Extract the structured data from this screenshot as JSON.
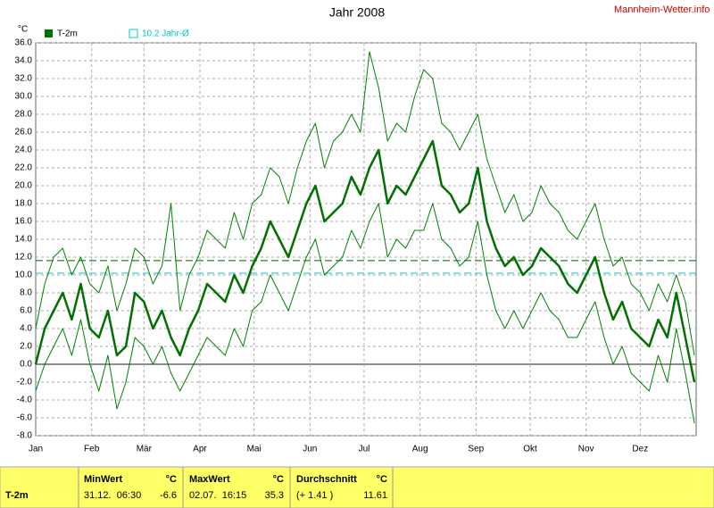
{
  "chart_data": {
    "type": "line",
    "title": "Jahr 2008",
    "y_unit": "°C",
    "source": "Mannheim-Wetter.info",
    "xlim": [
      1,
      367
    ],
    "xticks": [
      {
        "value": 1,
        "label": "Jan"
      },
      {
        "value": 32,
        "label": "Feb"
      },
      {
        "value": 61,
        "label": "Mär"
      },
      {
        "value": 92,
        "label": "Apr"
      },
      {
        "value": 122,
        "label": "Mai"
      },
      {
        "value": 153,
        "label": "Jun"
      },
      {
        "value": 183,
        "label": "Jul"
      },
      {
        "value": 214,
        "label": "Aug"
      },
      {
        "value": 245,
        "label": "Sep"
      },
      {
        "value": 275,
        "label": "Okt"
      },
      {
        "value": 306,
        "label": "Nov"
      },
      {
        "value": 336,
        "label": "Dez"
      }
    ],
    "ylim": [
      -8,
      36
    ],
    "yticks": [
      {
        "value": -8,
        "label": "-8.0"
      },
      {
        "value": -6,
        "label": "-6.0"
      },
      {
        "value": -4,
        "label": "-4.0"
      },
      {
        "value": -2,
        "label": "-2.0"
      },
      {
        "value": 0,
        "label": "0.0"
      },
      {
        "value": 2,
        "label": "2.0"
      },
      {
        "value": 4,
        "label": "4.0"
      },
      {
        "value": 6,
        "label": "6.0"
      },
      {
        "value": 8,
        "label": "8.0"
      },
      {
        "value": 10,
        "label": "10.0"
      },
      {
        "value": 12,
        "label": "12.0"
      },
      {
        "value": 14,
        "label": "14.0"
      },
      {
        "value": 16,
        "label": "16.0"
      },
      {
        "value": 18,
        "label": "18.0"
      },
      {
        "value": 20,
        "label": "20.0"
      },
      {
        "value": 22,
        "label": "22.0"
      },
      {
        "value": 24,
        "label": "24.0"
      },
      {
        "value": 26,
        "label": "26.0"
      },
      {
        "value": 28,
        "label": "28.0"
      },
      {
        "value": 30,
        "label": "30.0"
      },
      {
        "value": 32,
        "label": "32.0"
      },
      {
        "value": 34,
        "label": "34.0"
      },
      {
        "value": 36,
        "label": "36.0"
      }
    ],
    "grid": true,
    "x": [
      1,
      6,
      11,
      16,
      21,
      26,
      31,
      36,
      41,
      46,
      51,
      56,
      61,
      66,
      71,
      76,
      81,
      86,
      91,
      96,
      101,
      106,
      111,
      116,
      121,
      126,
      131,
      136,
      141,
      146,
      151,
      156,
      161,
      166,
      171,
      176,
      181,
      186,
      191,
      196,
      201,
      206,
      211,
      216,
      221,
      226,
      231,
      236,
      241,
      246,
      251,
      256,
      261,
      266,
      271,
      276,
      281,
      286,
      291,
      296,
      301,
      306,
      311,
      316,
      321,
      326,
      331,
      336,
      341,
      346,
      351,
      356,
      361,
      366
    ],
    "series": [
      {
        "name": "T-2m",
        "color": "#007000",
        "width": 2.5,
        "values": [
          0,
          4,
          6,
          8,
          5,
          9,
          4,
          3,
          6,
          1,
          2,
          8,
          7,
          4,
          6,
          3,
          1,
          4,
          6,
          9,
          8,
          7,
          10,
          8,
          11,
          13,
          16,
          14,
          12,
          15,
          18,
          20,
          16,
          17,
          18,
          21,
          19,
          22,
          24,
          18,
          20,
          19,
          21,
          23,
          25,
          20,
          19,
          17,
          18,
          22,
          16,
          13,
          11,
          12,
          10,
          11,
          13,
          12,
          11,
          9,
          8,
          10,
          12,
          8,
          5,
          7,
          4,
          3,
          2,
          5,
          3,
          8,
          3,
          -2
        ]
      },
      {
        "color": "#008000",
        "width": 1,
        "values": [
          4,
          9,
          12,
          13,
          10,
          12,
          9,
          8,
          11,
          6,
          9,
          13,
          12,
          9,
          11,
          18,
          6,
          10,
          12,
          15,
          14,
          13,
          17,
          14,
          18,
          19,
          22,
          21,
          18,
          22,
          25,
          27,
          22,
          25,
          26,
          28,
          26,
          35,
          31,
          25,
          27,
          26,
          30,
          33,
          32,
          27,
          26,
          24,
          26,
          28,
          23,
          20,
          17,
          19,
          16,
          17,
          20,
          18,
          17,
          15,
          14,
          16,
          18,
          14,
          11,
          12,
          9,
          8,
          6,
          9,
          7,
          10,
          7,
          1
        ]
      },
      {
        "color": "#008000",
        "width": 1,
        "values": [
          -3,
          0,
          2,
          4,
          1,
          5,
          0,
          -3,
          1,
          -5,
          -2,
          3,
          2,
          0,
          2,
          -1,
          -3,
          -1,
          1,
          3,
          2,
          1,
          4,
          2,
          6,
          7,
          10,
          8,
          6,
          9,
          12,
          14,
          10,
          11,
          12,
          15,
          13,
          16,
          18,
          12,
          14,
          13,
          15,
          15,
          18,
          14,
          13,
          11,
          12,
          16,
          10,
          6,
          4,
          6,
          4,
          6,
          8,
          6,
          5,
          3,
          3,
          5,
          7,
          3,
          0,
          2,
          -1,
          -2,
          -3,
          1,
          -2,
          4,
          -1,
          -6.6
        ]
      }
    ],
    "reference_lines": [
      {
        "value": 11.61,
        "color": "#006000"
      },
      {
        "value": 10.2,
        "color": "#00c8c8",
        "label": "10.2 Jahr-Ø"
      }
    ],
    "title_color": "#000000",
    "source_color": "#cc0000"
  },
  "table": {
    "row_label": "T-2m",
    "groups": [
      {
        "title": "MinWert",
        "unit": "°C",
        "date": "31.12.  06:30",
        "value": "-6.6"
      },
      {
        "title": "MaxWert",
        "unit": "°C",
        "date": "02.07.  16:15",
        "value": "35.3"
      },
      {
        "title": "Durchschnitt",
        "unit": "°C",
        "date": "(+ 1.41 )",
        "value": "11.61"
      }
    ]
  }
}
